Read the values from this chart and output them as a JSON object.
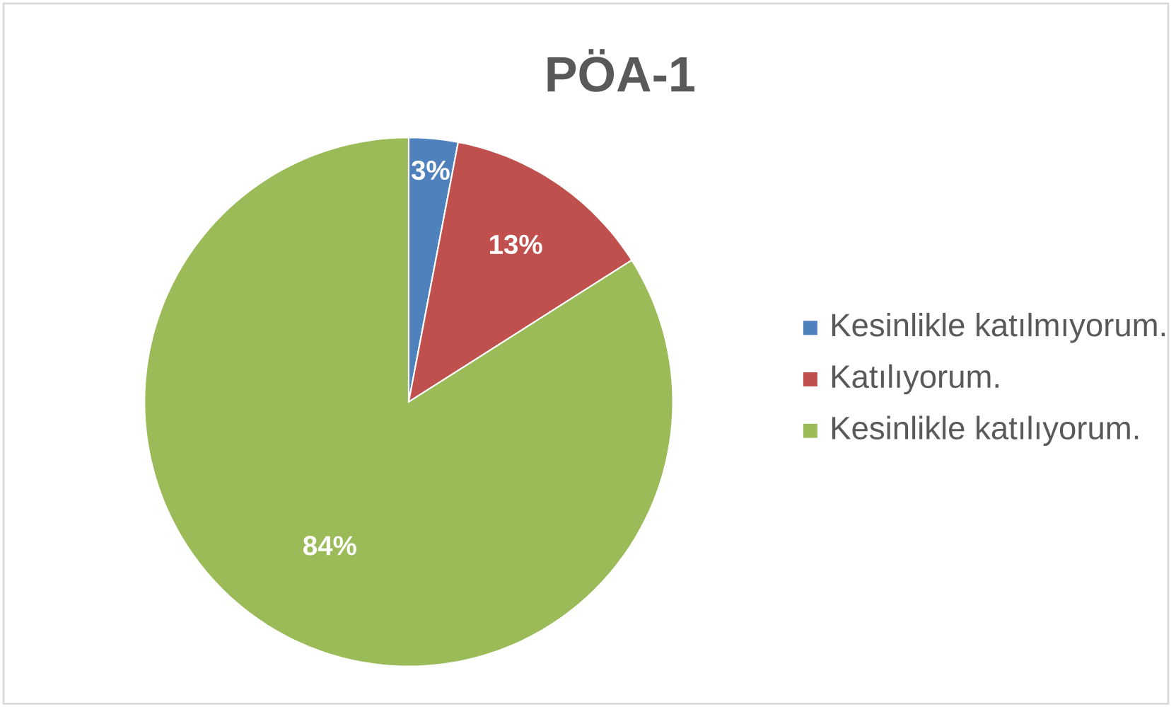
{
  "chart_data": {
    "type": "pie",
    "title": "PÖA-1",
    "categories": [
      "Kesinlikle katılmıyorum.",
      "Katılıyorum.",
      "Kesinlikle katılıyorum."
    ],
    "values": [
      3,
      13,
      84
    ],
    "colors": [
      "#4f81bd",
      "#c0504d",
      "#9bbb59"
    ],
    "value_labels": [
      "3%",
      "13%",
      "84%"
    ],
    "legend": "right"
  }
}
